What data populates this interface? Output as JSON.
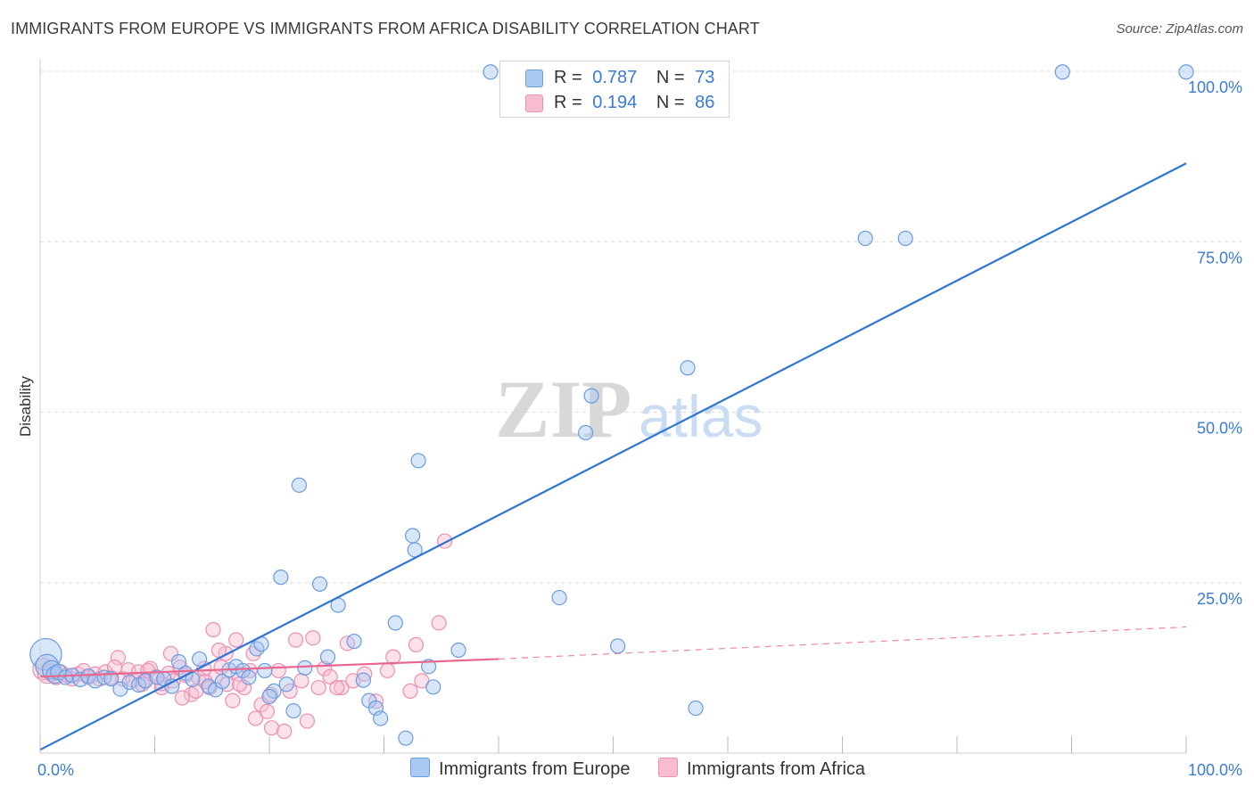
{
  "title": "IMMIGRANTS FROM EUROPE VS IMMIGRANTS FROM AFRICA DISABILITY CORRELATION CHART",
  "source": "Source: ZipAtlas.com",
  "watermark": {
    "zip": "ZIP",
    "atlas": "atlas"
  },
  "colors": {
    "europe_fill": "#a9c8f2",
    "europe_stroke": "#6a9be0",
    "europe_line": "#2f76d2",
    "africa_fill": "#f7bcd0",
    "africa_stroke": "#ee8eb0",
    "africa_line": "#e8678f",
    "grid": "#dcdcdc",
    "axis_text": "#3a7bd5"
  },
  "legend": {
    "europe": {
      "r_label": "R =",
      "r_value": "0.787",
      "n_label": "N =",
      "n_value": "73"
    },
    "africa": {
      "r_label": "R =",
      "r_value": "0.194",
      "n_label": "N =",
      "n_value": "86"
    }
  },
  "bottom_legend": {
    "europe": "Immigrants from Europe",
    "africa": "Immigrants from Africa"
  },
  "chart_data": {
    "type": "scatter",
    "title": "IMMIGRANTS FROM EUROPE VS IMMIGRANTS FROM AFRICA DISABILITY CORRELATION CHART",
    "xlabel": "",
    "ylabel": "Disability",
    "xlim": [
      0,
      100
    ],
    "ylim": [
      0,
      100
    ],
    "x_tick_labels": [
      "0.0%",
      "100.0%"
    ],
    "y_ticks": [
      25,
      50,
      75,
      100
    ],
    "y_tick_labels": [
      "25.0%",
      "50.0%",
      "75.0%",
      "100.0%"
    ],
    "series": [
      {
        "name": "Immigrants from Europe",
        "trend": {
          "x": [
            0,
            100
          ],
          "y": [
            0.5,
            86.5
          ]
        },
        "points": [
          [
            0.5,
            14.5,
            2.2
          ],
          [
            0.6,
            12.8,
            1.6
          ],
          [
            1,
            12.2,
            1.3
          ],
          [
            1.3,
            11.5,
            1.2
          ],
          [
            1.6,
            11.9,
            1.1
          ],
          [
            2.2,
            11.1,
            1
          ],
          [
            2.8,
            11.4,
            1
          ],
          [
            3.5,
            10.8,
            1
          ],
          [
            4.2,
            11.3,
            1
          ],
          [
            4.8,
            10.6,
            1
          ],
          [
            5.6,
            11.1,
            1
          ],
          [
            6.2,
            10.9,
            1
          ],
          [
            7,
            9.4,
            1
          ],
          [
            7.8,
            10.4,
            1
          ],
          [
            8.6,
            10,
            1
          ],
          [
            9.2,
            10.6,
            1
          ],
          [
            10.2,
            11.1,
            1
          ],
          [
            10.8,
            10.9,
            1
          ],
          [
            11.5,
            9.8,
            1
          ],
          [
            12.1,
            13.4,
            1
          ],
          [
            12.7,
            11.7,
            1
          ],
          [
            13.3,
            10.8,
            1
          ],
          [
            13.9,
            13.8,
            1
          ],
          [
            14.7,
            9.8,
            1
          ],
          [
            15.3,
            9.3,
            1
          ],
          [
            15.9,
            10.5,
            1
          ],
          [
            16.5,
            12.2,
            1
          ],
          [
            17.1,
            12.7,
            1
          ],
          [
            17.7,
            12.1,
            1
          ],
          [
            18.2,
            11.1,
            1
          ],
          [
            18.9,
            15.3,
            1
          ],
          [
            19.3,
            16,
            1
          ],
          [
            19.6,
            12.1,
            1
          ],
          [
            20.4,
            9.1,
            1
          ],
          [
            20,
            8.3,
            1
          ],
          [
            21.5,
            10.1,
            1
          ],
          [
            22.1,
            6.2,
            1
          ],
          [
            22.6,
            39.3,
            1
          ],
          [
            23.1,
            12.5,
            1
          ],
          [
            21,
            25.8,
            1
          ],
          [
            24.4,
            24.8,
            1
          ],
          [
            25.1,
            14.1,
            1
          ],
          [
            26,
            21.7,
            1
          ],
          [
            27.4,
            16.4,
            1
          ],
          [
            28.2,
            10.7,
            1
          ],
          [
            28.7,
            7.7,
            1
          ],
          [
            29.3,
            6.6,
            1
          ],
          [
            29.7,
            5.1,
            1
          ],
          [
            31,
            19.1,
            1
          ],
          [
            31.9,
            2.2,
            1
          ],
          [
            32.5,
            31.9,
            1
          ],
          [
            32.7,
            29.8,
            1
          ],
          [
            33,
            42.9,
            1
          ],
          [
            33.9,
            12.7,
            1
          ],
          [
            34.3,
            9.7,
            1
          ],
          [
            36.5,
            15.1,
            1
          ],
          [
            39.3,
            99.9,
            1
          ],
          [
            47.6,
            47,
            1
          ],
          [
            48.1,
            52.4,
            1
          ],
          [
            45.3,
            22.8,
            1
          ],
          [
            50.4,
            15.7,
            1
          ],
          [
            56.5,
            56.5,
            1
          ],
          [
            57.2,
            6.6,
            1
          ],
          [
            72,
            75.5,
            1
          ],
          [
            75.5,
            75.5,
            1
          ],
          [
            89.2,
            99.9,
            1
          ],
          [
            100,
            99.9,
            1
          ]
        ]
      },
      {
        "name": "Immigrants from Africa",
        "trend": {
          "x": [
            0,
            40
          ],
          "y": [
            11.2,
            13.8
          ]
        },
        "trend_dashed": {
          "x": [
            40,
            100
          ],
          "y": [
            13.8,
            18.5
          ]
        },
        "points": [
          [
            0.3,
            12.3,
            1.5
          ],
          [
            0.6,
            11.6,
            1.3
          ],
          [
            1,
            11.8,
            1.2
          ],
          [
            1.4,
            11.2,
            1.1
          ],
          [
            1.8,
            11.9,
            1
          ],
          [
            2.3,
            11.4,
            1
          ],
          [
            2.8,
            10.9,
            1
          ],
          [
            3.3,
            11.6,
            1
          ],
          [
            3.8,
            12.1,
            1
          ],
          [
            4.2,
            11.1,
            1
          ],
          [
            4.8,
            11.6,
            1
          ],
          [
            5.2,
            10.9,
            1
          ],
          [
            5.7,
            11.9,
            1
          ],
          [
            6.2,
            11.1,
            1
          ],
          [
            6.8,
            14,
            1
          ],
          [
            7.2,
            10.9,
            1
          ],
          [
            7.7,
            12.2,
            1
          ],
          [
            8.1,
            10.7,
            1
          ],
          [
            8.6,
            11.9,
            1
          ],
          [
            9.1,
            10.6,
            1
          ],
          [
            9.6,
            12.4,
            1
          ],
          [
            10.1,
            11.2,
            1
          ],
          [
            10.6,
            9.6,
            1
          ],
          [
            11.2,
            11.7,
            1
          ],
          [
            11.6,
            10.6,
            1
          ],
          [
            12.2,
            12.6,
            1
          ],
          [
            12.7,
            11.4,
            1
          ],
          [
            13.2,
            8.6,
            1
          ],
          [
            13.8,
            11.1,
            1
          ],
          [
            14.3,
            12.4,
            1
          ],
          [
            14.8,
            9.6,
            1
          ],
          [
            15.3,
            11.2,
            1
          ],
          [
            15.8,
            12.6,
            1
          ],
          [
            16.3,
            10.1,
            1
          ],
          [
            16.8,
            7.7,
            1
          ],
          [
            17.3,
            11.6,
            1
          ],
          [
            17.8,
            9.6,
            1
          ],
          [
            18.3,
            12.1,
            1
          ],
          [
            18.8,
            5.1,
            1
          ],
          [
            19.3,
            7.1,
            1
          ],
          [
            19.8,
            6.1,
            1
          ],
          [
            20.2,
            3.7,
            1
          ],
          [
            20.8,
            12.1,
            1
          ],
          [
            21.3,
            3.2,
            1
          ],
          [
            21.8,
            9.1,
            1
          ],
          [
            22.3,
            16.6,
            1
          ],
          [
            22.8,
            10.6,
            1
          ],
          [
            23.3,
            4.7,
            1
          ],
          [
            23.8,
            16.9,
            1
          ],
          [
            24.3,
            9.6,
            1
          ],
          [
            24.8,
            12.4,
            1
          ],
          [
            25.3,
            11.2,
            1
          ],
          [
            26.3,
            9.6,
            1
          ],
          [
            26.8,
            16.1,
            1
          ],
          [
            27.3,
            10.6,
            1
          ],
          [
            28.3,
            11.6,
            1
          ],
          [
            29.3,
            7.6,
            1
          ],
          [
            30.3,
            12.1,
            1
          ],
          [
            30.8,
            14.1,
            1
          ],
          [
            32.3,
            9.1,
            1
          ],
          [
            32.8,
            15.9,
            1
          ],
          [
            33.3,
            10.6,
            1
          ],
          [
            34.8,
            19.1,
            1
          ],
          [
            35.3,
            31.1,
            1
          ],
          [
            25.9,
            9.6,
            1
          ],
          [
            20.1,
            8.6,
            1
          ],
          [
            17.1,
            16.6,
            1
          ],
          [
            16.2,
            14.6,
            1
          ],
          [
            15.1,
            18.1,
            1
          ],
          [
            11.4,
            14.6,
            1
          ],
          [
            9.4,
            12.1,
            1
          ],
          [
            6.5,
            12.6,
            1
          ],
          [
            8.9,
            10.1,
            1
          ],
          [
            10.6,
            10.2,
            1
          ],
          [
            13.6,
            9.1,
            1
          ],
          [
            12.4,
            8.1,
            1
          ],
          [
            14.4,
            10.5,
            1
          ],
          [
            17.4,
            10.1,
            1
          ],
          [
            18.6,
            14.6,
            1
          ],
          [
            15.6,
            15.1,
            1
          ]
        ]
      }
    ]
  }
}
